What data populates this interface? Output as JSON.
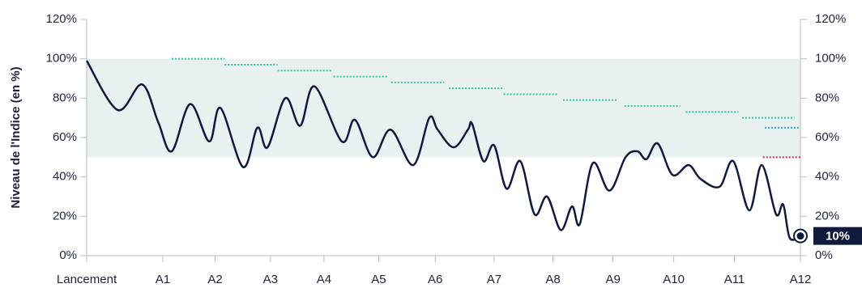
{
  "chart_data": {
    "type": "line",
    "ylabel": "Niveau de l'Indice (en %)",
    "xlim": [
      0,
      12
    ],
    "xticks": [
      {
        "value": 0,
        "label": "Lancement"
      },
      {
        "value": 1.28,
        "label": "A1"
      },
      {
        "value": 2.16,
        "label": "A2"
      },
      {
        "value": 3.09,
        "label": "A3"
      },
      {
        "value": 3.99,
        "label": "A4"
      },
      {
        "value": 4.91,
        "label": "A5"
      },
      {
        "value": 5.86,
        "label": "A6"
      },
      {
        "value": 6.85,
        "label": "A7"
      },
      {
        "value": 7.84,
        "label": "A8"
      },
      {
        "value": 8.85,
        "label": "A9"
      },
      {
        "value": 9.87,
        "label": "A10"
      },
      {
        "value": 10.89,
        "label": "A11"
      },
      {
        "value": 12,
        "label": "A12"
      }
    ],
    "ylim": [
      0,
      120
    ],
    "yticks": [
      {
        "value": 0,
        "label": "0%"
      },
      {
        "value": 20,
        "label": "20%"
      },
      {
        "value": 40,
        "label": "40%"
      },
      {
        "value": 60,
        "label": "60%"
      },
      {
        "value": 80,
        "label": "80%"
      },
      {
        "value": 100,
        "label": "100%"
      },
      {
        "value": 120,
        "label": "120%"
      }
    ],
    "band": {
      "range": [
        50,
        100
      ],
      "color": "#e8f1f0"
    },
    "series": [
      {
        "color": "#0f1a3c",
        "x": [
          0,
          0.52,
          0.93,
          1.2,
          1.43,
          1.74,
          2.06,
          2.25,
          2.63,
          2.87,
          3.04,
          3.34,
          3.59,
          3.83,
          4.29,
          4.51,
          4.81,
          5.11,
          5.49,
          5.76,
          5.9,
          6.17,
          6.41,
          6.48,
          6.67,
          6.85,
          7.06,
          7.29,
          7.53,
          7.74,
          7.97,
          8.16,
          8.29,
          8.51,
          8.79,
          9.06,
          9.26,
          9.41,
          9.6,
          9.85,
          10.12,
          10.32,
          10.64,
          10.87,
          11.14,
          11.35,
          11.59,
          11.71,
          11.82,
          12
        ],
        "values": [
          99,
          74,
          87,
          68,
          53,
          77,
          58,
          75,
          45,
          65,
          55,
          80,
          66,
          86,
          58,
          69,
          50,
          64,
          46,
          70,
          64,
          55,
          64,
          67,
          48,
          56,
          34,
          48,
          21,
          30,
          13,
          25,
          16,
          47,
          33,
          50,
          53,
          49,
          57,
          41,
          46,
          39,
          35,
          48,
          23,
          46,
          21,
          26,
          9,
          10
        ],
        "value_labels": [
          null,
          null,
          null,
          null,
          null,
          null,
          null,
          null,
          null,
          null,
          null,
          null,
          null,
          null,
          null,
          null,
          null,
          null,
          null,
          null,
          null,
          null,
          null,
          null,
          null,
          null,
          null,
          null,
          null,
          null,
          null,
          null,
          null,
          null,
          null,
          null,
          null,
          null,
          null,
          null,
          null,
          null,
          null,
          null,
          null,
          null,
          null,
          null,
          null,
          "10%"
        ]
      }
    ],
    "levels": [
      {
        "color": "#2ec4a0",
        "segments": [
          {
            "x": [
              1.43,
              2.32
            ],
            "value": 100
          },
          {
            "x": [
              2.32,
              3.21
            ],
            "value": 97
          },
          {
            "x": [
              3.21,
              4.13
            ],
            "value": 94
          },
          {
            "x": [
              4.15,
              5.05
            ],
            "value": 91
          },
          {
            "x": [
              5.12,
              6.01
            ],
            "value": 88
          },
          {
            "x": [
              6.09,
              6.99
            ],
            "value": 85
          },
          {
            "x": [
              7.01,
              7.91
            ],
            "value": 82
          },
          {
            "x": [
              8.01,
              8.92
            ],
            "value": 79
          },
          {
            "x": [
              9.04,
              9.98
            ],
            "value": 76
          },
          {
            "x": [
              10.07,
              10.96
            ],
            "value": 73
          },
          {
            "x": [
              11.02,
              11.9
            ],
            "value": 70
          }
        ]
      },
      {
        "color": "#2aa8d8",
        "segments": [
          {
            "x": [
              11.4,
              12
            ],
            "value": 65
          }
        ]
      },
      {
        "color": "#d0312d",
        "segments": [
          {
            "x": [
              11.37,
              12
            ],
            "value": 50
          }
        ]
      }
    ]
  }
}
